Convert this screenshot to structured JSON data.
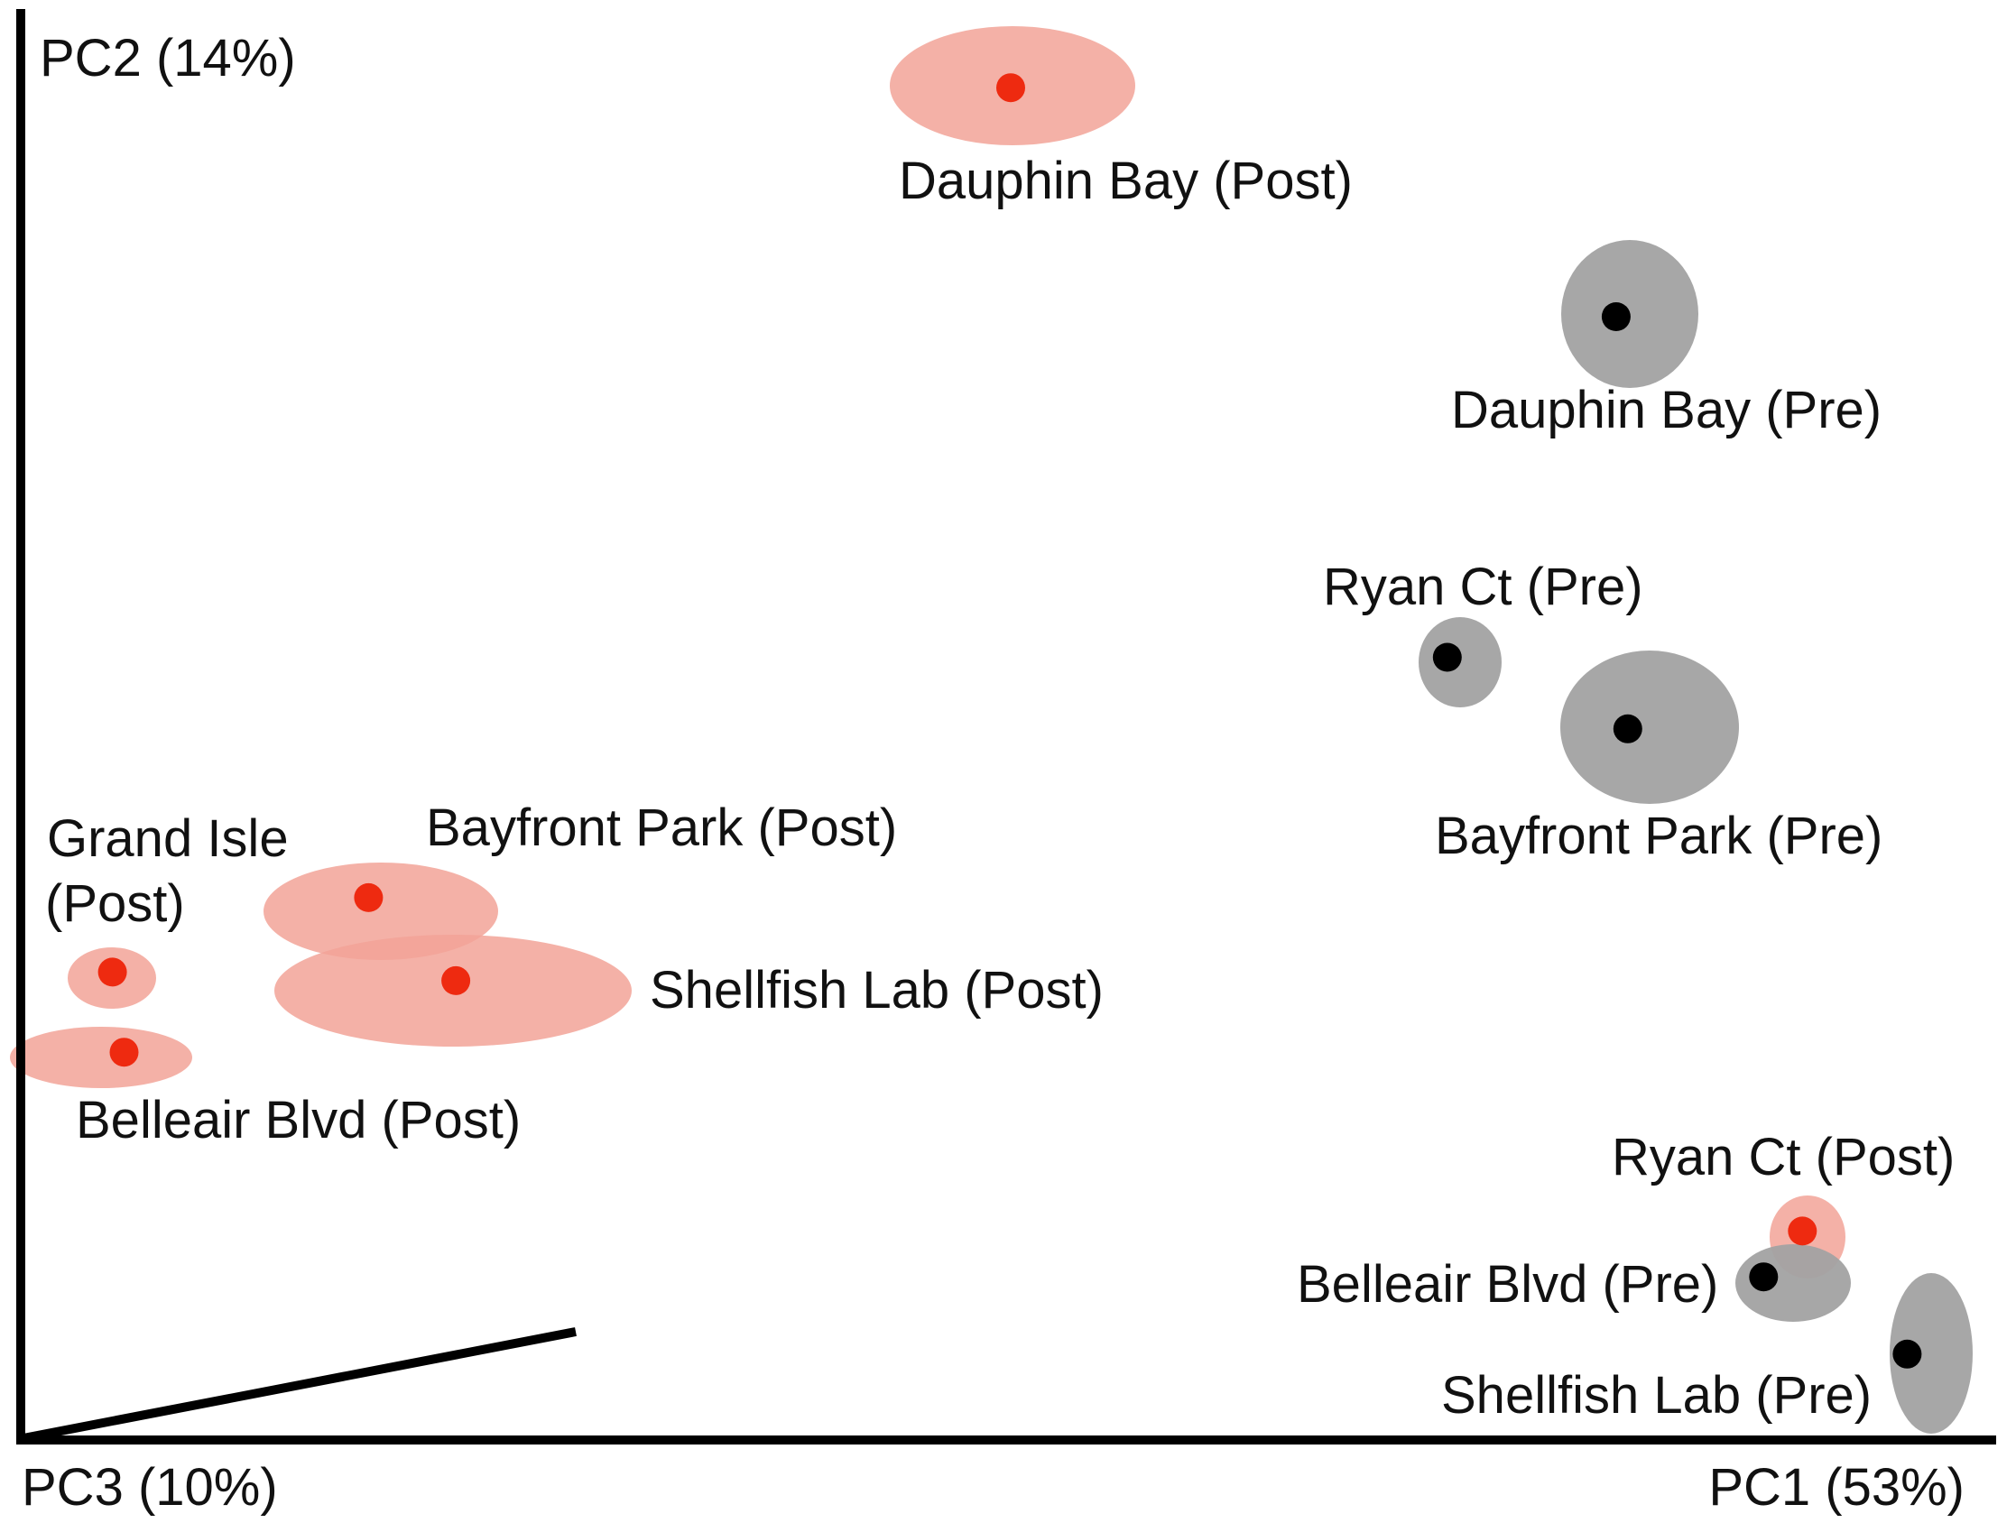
{
  "chart_data": {
    "type": "scatter",
    "title": "",
    "xlabel": "PC1 (53%)",
    "ylabel": "PC2 (14%)",
    "zlabel": "PC3 (10%)",
    "axis_ticks": false,
    "grid": false,
    "legend": "none",
    "colors": {
      "post_fill": "#f2a398",
      "post_point": "#ee2a10",
      "pre_fill": "#a2a2a2",
      "pre_point": "#000000",
      "axis": "#000000"
    },
    "series": [
      {
        "name": "Post",
        "points": [
          {
            "site": "Dauphin Bay",
            "label": "Dauphin Bay (Post)",
            "x": 50.7,
            "y": 94.5
          },
          {
            "site": "Bayfront Park",
            "label": "Bayfront Park (Post)",
            "x": 17.6,
            "y": 37.9
          },
          {
            "site": "Shellfish Lab",
            "label": "Shellfish Lab (Post)",
            "x": 22.1,
            "y": 32.1
          },
          {
            "site": "Grand Isle",
            "label": "Grand Isle (Post)",
            "label_lines": [
              "Grand Isle",
              "(Post)"
            ],
            "x": 4.4,
            "y": 32.7
          },
          {
            "site": "Belleair Blvd",
            "label": "Belleair Blvd (Post)",
            "x": 5.0,
            "y": 27.1
          },
          {
            "site": "Ryan Ct",
            "label": "Ryan Ct (Post)",
            "x": 91.5,
            "y": 14.6
          }
        ]
      },
      {
        "name": "Pre",
        "points": [
          {
            "site": "Dauphin Bay",
            "label": "Dauphin Bay (Pre)",
            "x": 81.9,
            "y": 78.5
          },
          {
            "site": "Ryan Ct",
            "label": "Ryan Ct (Pre)",
            "x": 73.2,
            "y": 54.7
          },
          {
            "site": "Bayfront Park",
            "label": "Bayfront Park (Pre)",
            "x": 82.5,
            "y": 49.7
          },
          {
            "site": "Belleair Blvd",
            "label": "Belleair Blvd (Pre)",
            "x": 89.5,
            "y": 11.4
          },
          {
            "site": "Shellfish Lab",
            "label": "Shellfish Lab (Pre)",
            "x": 96.9,
            "y": 6.0
          }
        ]
      }
    ]
  }
}
